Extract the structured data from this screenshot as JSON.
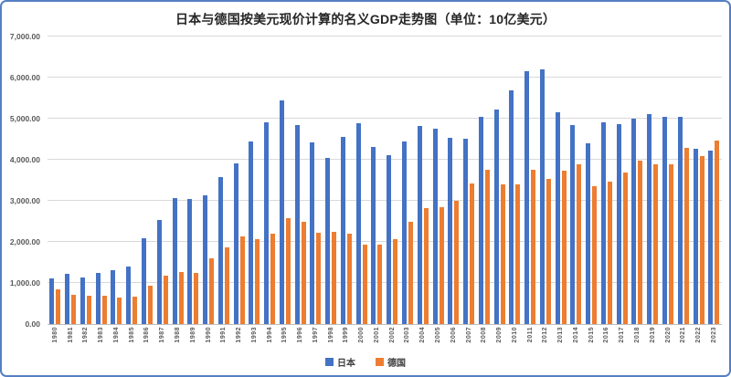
{
  "title": "日本与德国按美元现价计算的名义GDP走势图（单位：10亿美元）",
  "colors": {
    "japan_bar": "#4472C4",
    "germany_bar": "#ED7D31",
    "frame_border": "#557FC4",
    "gridline": "#D9D9D9",
    "axis_line": "#BFBFBF",
    "axis_text": "#595959",
    "title_text": "#262626"
  },
  "legend": [
    {
      "label": "日本",
      "color": "#4472C4"
    },
    {
      "label": "德国",
      "color": "#ED7D31"
    }
  ],
  "y_axis": {
    "ticks": [
      "7,000.00",
      "6,000.00",
      "5,000.00",
      "4,000.00",
      "3,000.00",
      "2,000.00",
      "1,000.00",
      "0.00"
    ],
    "min": 0,
    "max": 7000,
    "step": 1000
  },
  "chart_data": {
    "type": "bar",
    "title": "日本与德国按美元现价计算的名义GDP走势图（单位：10亿美元）",
    "xlabel": "",
    "ylabel": "",
    "ylim": [
      0,
      7000
    ],
    "grid": true,
    "legend_position": "bottom",
    "categories": [
      "1980",
      "1981",
      "1982",
      "1983",
      "1984",
      "1985",
      "1986",
      "1987",
      "1988",
      "1989",
      "1990",
      "1991",
      "1992",
      "1993",
      "1994",
      "1995",
      "1996",
      "1997",
      "1998",
      "1999",
      "2000",
      "2001",
      "2002",
      "2003",
      "2004",
      "2005",
      "2006",
      "2007",
      "2008",
      "2009",
      "2010",
      "2011",
      "2012",
      "2013",
      "2014",
      "2015",
      "2016",
      "2017",
      "2018",
      "2019",
      "2020",
      "2021",
      "2022",
      "2023"
    ],
    "series": [
      {
        "name": "日本",
        "color": "#4472C4",
        "values": [
          1105.39,
          1218.99,
          1134.52,
          1243.79,
          1318.38,
          1398.89,
          2078.95,
          2532.81,
          3071.68,
          3054.91,
          3132.82,
          3584.42,
          3908.81,
          4454.14,
          4907.04,
          5449.12,
          4833.71,
          4415.73,
          4033.75,
          4562.08,
          4887.52,
          4303.54,
          4115.12,
          4445.66,
          4815.15,
          4755.41,
          4530.38,
          4515.26,
          5037.91,
          5231.38,
          5700.1,
          6157.46,
          6203.21,
          5155.72,
          4850.41,
          4389.48,
          4922.54,
          4866.86,
          5003.68,
          5117.99,
          5055.59,
          5034.62,
          4256.41,
          4212.95
        ]
      },
      {
        "name": "德国",
        "color": "#ED7D31",
        "values": [
          853.7,
          719.0,
          694.34,
          690.57,
          650.46,
          659.89,
          942.09,
          1170.56,
          1258.91,
          1249.73,
          1598.64,
          1874.36,
          2131.57,
          2071.32,
          2205.07,
          2585.79,
          2498.21,
          2213.7,
          2239.29,
          2194.93,
          1943.14,
          1940.88,
          2068.51,
          2496.62,
          2814.35,
          2846.86,
          2994.7,
          3425.58,
          3745.26,
          3411.26,
          3399.67,
          3749.31,
          3527.14,
          3733.8,
          3889.09,
          3357.59,
          3469.85,
          3690.85,
          3974.44,
          3888.23,
          3887.73,
          4278.5,
          4082.47,
          4456.08
        ]
      }
    ]
  }
}
